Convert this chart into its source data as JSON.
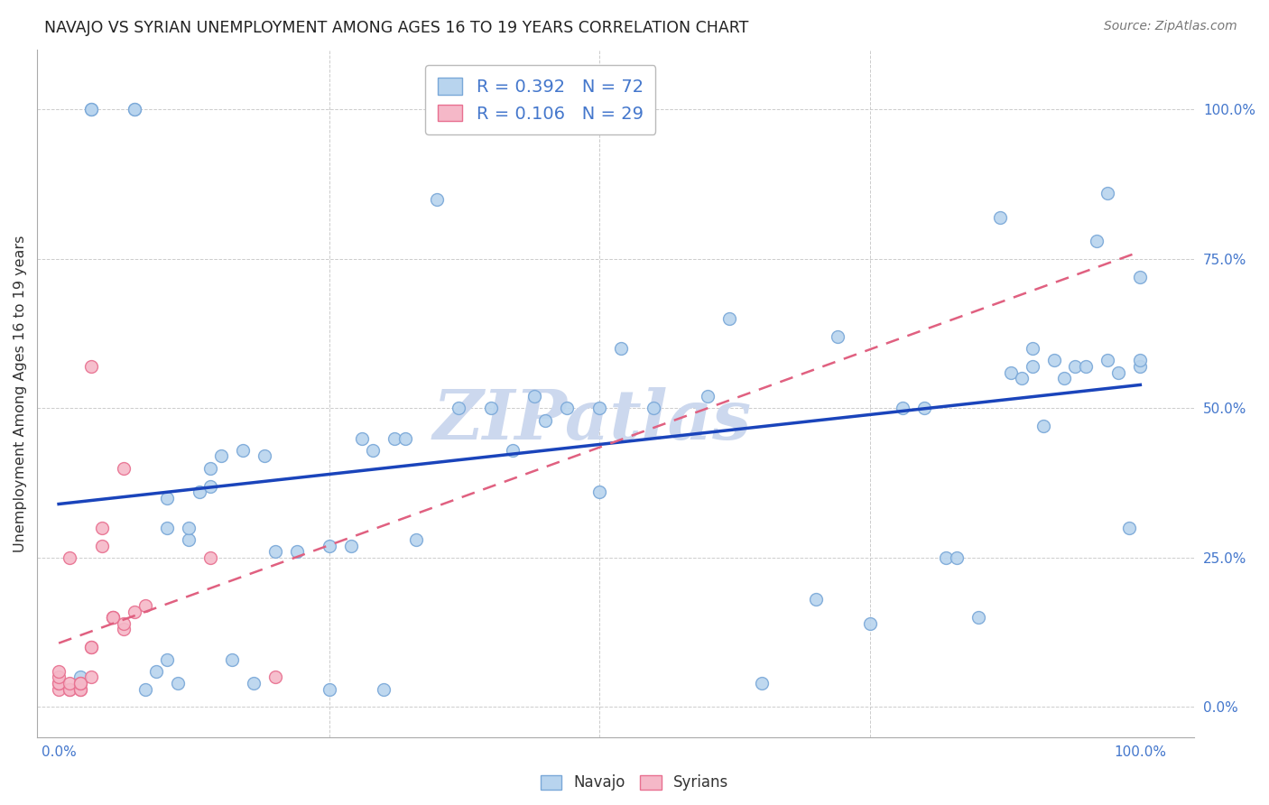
{
  "title": "NAVAJO VS SYRIAN UNEMPLOYMENT AMONG AGES 16 TO 19 YEARS CORRELATION CHART",
  "source": "Source: ZipAtlas.com",
  "ylabel": "Unemployment Among Ages 16 to 19 years",
  "xlim": [
    -0.02,
    1.05
  ],
  "ylim": [
    -0.05,
    1.1
  ],
  "ytick_positions": [
    0.0,
    0.25,
    0.5,
    0.75,
    1.0
  ],
  "ytick_labels": [
    "0.0%",
    "25.0%",
    "50.0%",
    "75.0%",
    "100.0%"
  ],
  "navajo_R": 0.392,
  "navajo_N": 72,
  "syrians_R": 0.106,
  "syrians_N": 29,
  "navajo_color": "#b8d4ee",
  "navajo_edge_color": "#7aa8d8",
  "syrians_color": "#f5b8c8",
  "syrians_edge_color": "#e87090",
  "navajo_line_color": "#1a44bb",
  "syrians_line_color": "#e06080",
  "marker_size": 100,
  "navajo_x": [
    0.02,
    0.03,
    0.03,
    0.07,
    0.07,
    0.08,
    0.09,
    0.1,
    0.1,
    0.1,
    0.11,
    0.12,
    0.12,
    0.13,
    0.14,
    0.14,
    0.15,
    0.16,
    0.17,
    0.18,
    0.19,
    0.2,
    0.22,
    0.25,
    0.25,
    0.27,
    0.28,
    0.29,
    0.3,
    0.31,
    0.32,
    0.33,
    0.35,
    0.37,
    0.4,
    0.42,
    0.44,
    0.45,
    0.47,
    0.5,
    0.5,
    0.52,
    0.55,
    0.6,
    0.62,
    0.65,
    0.7,
    0.72,
    0.75,
    0.78,
    0.8,
    0.82,
    0.83,
    0.85,
    0.87,
    0.88,
    0.89,
    0.9,
    0.9,
    0.91,
    0.92,
    0.93,
    0.94,
    0.95,
    0.96,
    0.97,
    0.97,
    0.98,
    0.99,
    1.0,
    1.0,
    1.0
  ],
  "navajo_y": [
    0.05,
    1.0,
    1.0,
    1.0,
    1.0,
    0.03,
    0.06,
    0.08,
    0.3,
    0.35,
    0.04,
    0.28,
    0.3,
    0.36,
    0.4,
    0.37,
    0.42,
    0.08,
    0.43,
    0.04,
    0.42,
    0.26,
    0.26,
    0.27,
    0.03,
    0.27,
    0.45,
    0.43,
    0.03,
    0.45,
    0.45,
    0.28,
    0.85,
    0.5,
    0.5,
    0.43,
    0.52,
    0.48,
    0.5,
    0.5,
    0.36,
    0.6,
    0.5,
    0.52,
    0.65,
    0.04,
    0.18,
    0.62,
    0.14,
    0.5,
    0.5,
    0.25,
    0.25,
    0.15,
    0.82,
    0.56,
    0.55,
    0.57,
    0.6,
    0.47,
    0.58,
    0.55,
    0.57,
    0.57,
    0.78,
    0.58,
    0.86,
    0.56,
    0.3,
    0.57,
    0.58,
    0.72
  ],
  "syrians_x": [
    0.0,
    0.0,
    0.0,
    0.0,
    0.0,
    0.01,
    0.01,
    0.01,
    0.01,
    0.02,
    0.02,
    0.02,
    0.02,
    0.03,
    0.03,
    0.03,
    0.03,
    0.04,
    0.04,
    0.05,
    0.05,
    0.05,
    0.06,
    0.06,
    0.06,
    0.07,
    0.08,
    0.14,
    0.2
  ],
  "syrians_y": [
    0.03,
    0.04,
    0.04,
    0.05,
    0.06,
    0.03,
    0.03,
    0.04,
    0.25,
    0.03,
    0.03,
    0.04,
    0.04,
    0.05,
    0.1,
    0.1,
    0.57,
    0.27,
    0.3,
    0.15,
    0.15,
    0.15,
    0.13,
    0.14,
    0.4,
    0.16,
    0.17,
    0.25,
    0.05
  ],
  "watermark": "ZIPatlas",
  "watermark_color": "#ccd8ee",
  "grid_color": "#cccccc",
  "background_color": "#ffffff",
  "label_color": "#4477cc",
  "tick_label_color": "#4477cc"
}
